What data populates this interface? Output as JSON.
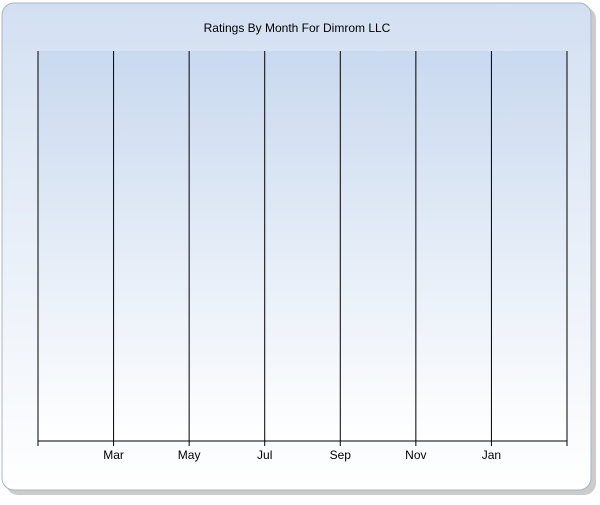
{
  "chart_data": {
    "type": "line",
    "title": "Ratings By Month For Dimrom LLC",
    "categories": [
      null,
      "Mar",
      "May",
      "Jul",
      "Sep",
      "Nov",
      "Jan",
      null
    ],
    "grid": true
  }
}
